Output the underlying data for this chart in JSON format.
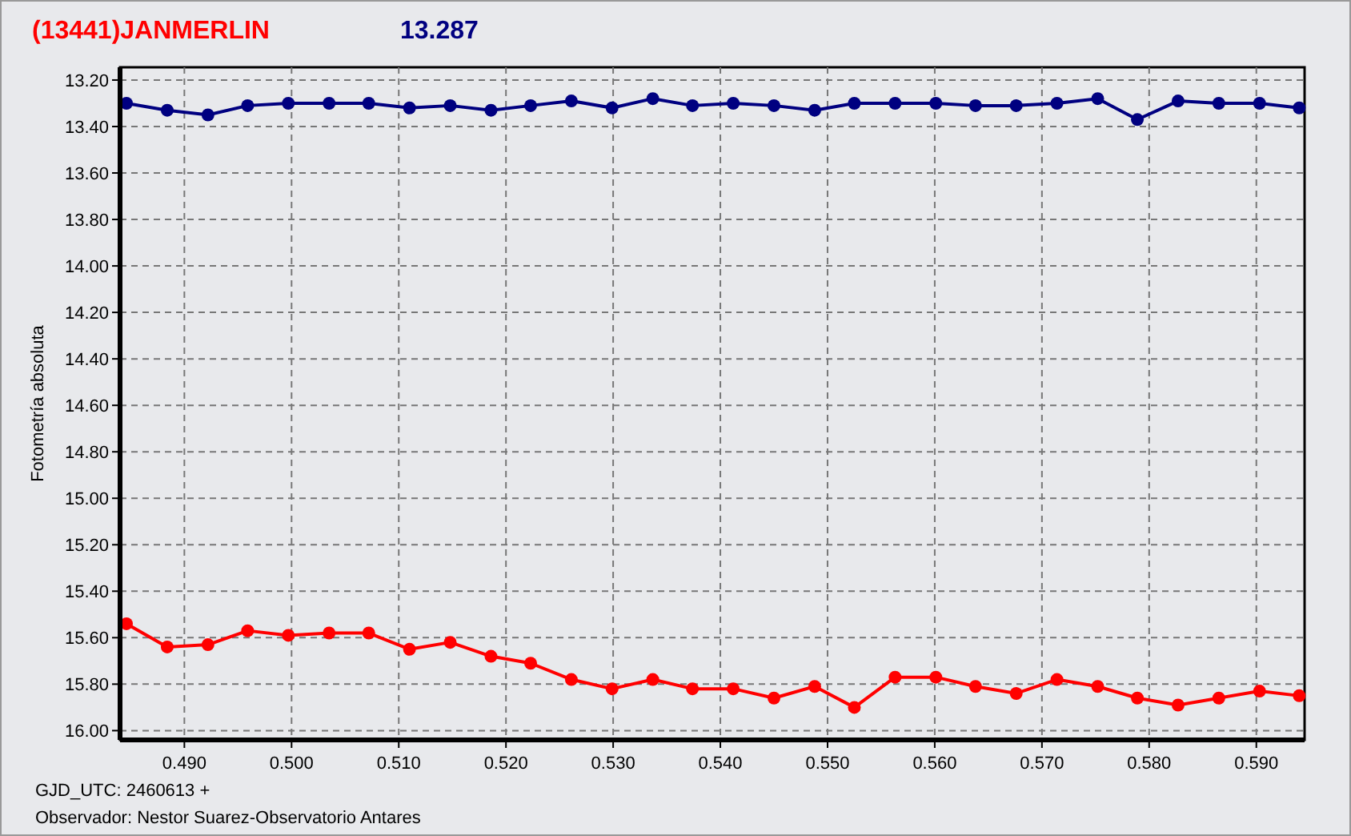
{
  "chart_data": {
    "type": "line",
    "title": "(13441)JANMERLIN",
    "subtitle": "13.287",
    "ylabel": "Fotometría absoluta",
    "annotations": [
      "GJD_UTC: 2460613 +",
      "Observador: Nestor Suarez-Observatorio Antares"
    ],
    "x": [
      0.4846,
      0.4884,
      0.4922,
      0.4959,
      0.4997,
      0.5035,
      0.5072,
      0.511,
      0.5148,
      0.5186,
      0.5223,
      0.5261,
      0.5299,
      0.5337,
      0.5374,
      0.5412,
      0.545,
      0.5488,
      0.5525,
      0.5563,
      0.5601,
      0.5638,
      0.5676,
      0.5714,
      0.5752,
      0.5789,
      0.5827,
      0.5865,
      0.5903,
      0.594
    ],
    "series": [
      {
        "color": "#000080",
        "values": [
          13.3,
          13.33,
          13.35,
          13.31,
          13.3,
          13.3,
          13.3,
          13.32,
          13.31,
          13.33,
          13.31,
          13.29,
          13.32,
          13.28,
          13.31,
          13.3,
          13.31,
          13.33,
          13.3,
          13.3,
          13.3,
          13.31,
          13.31,
          13.3,
          13.28,
          13.37,
          13.29,
          13.3,
          13.3,
          13.32
        ]
      },
      {
        "color": "#ff0000",
        "values": [
          15.54,
          15.64,
          15.63,
          15.57,
          15.59,
          15.58,
          15.58,
          15.65,
          15.62,
          15.68,
          15.71,
          15.78,
          15.82,
          15.78,
          15.82,
          15.82,
          15.86,
          15.81,
          15.9,
          15.77,
          15.77,
          15.81,
          15.84,
          15.78,
          15.81,
          15.86,
          15.89,
          15.86,
          15.83,
          15.85
        ]
      }
    ],
    "xlim": [
      0.484,
      0.5945
    ],
    "xticks": [
      {
        "value": 0.49,
        "label": "0.490"
      },
      {
        "value": 0.5,
        "label": "0.500"
      },
      {
        "value": 0.51,
        "label": "0.510"
      },
      {
        "value": 0.52,
        "label": "0.520"
      },
      {
        "value": 0.53,
        "label": "0.530"
      },
      {
        "value": 0.54,
        "label": "0.540"
      },
      {
        "value": 0.55,
        "label": "0.550"
      },
      {
        "value": 0.56,
        "label": "0.560"
      },
      {
        "value": 0.57,
        "label": "0.570"
      },
      {
        "value": 0.58,
        "label": "0.580"
      },
      {
        "value": 0.59,
        "label": "0.590"
      }
    ],
    "ylim": [
      16.04,
      13.145
    ],
    "yticks": [
      {
        "value": 13.2,
        "label": "13.20"
      },
      {
        "value": 13.4,
        "label": "13.40"
      },
      {
        "value": 13.6,
        "label": "13.60"
      },
      {
        "value": 13.8,
        "label": "13.80"
      },
      {
        "value": 14.0,
        "label": "14.00"
      },
      {
        "value": 14.2,
        "label": "14.20"
      },
      {
        "value": 14.4,
        "label": "14.40"
      },
      {
        "value": 14.6,
        "label": "14.60"
      },
      {
        "value": 14.8,
        "label": "14.80"
      },
      {
        "value": 15.0,
        "label": "15.00"
      },
      {
        "value": 15.2,
        "label": "15.20"
      },
      {
        "value": 15.4,
        "label": "15.40"
      },
      {
        "value": 15.6,
        "label": "15.60"
      },
      {
        "value": 15.8,
        "label": "15.80"
      },
      {
        "value": 16.0,
        "label": "16.00"
      }
    ],
    "grid": true,
    "marker": "circle",
    "line_style": "solid"
  }
}
